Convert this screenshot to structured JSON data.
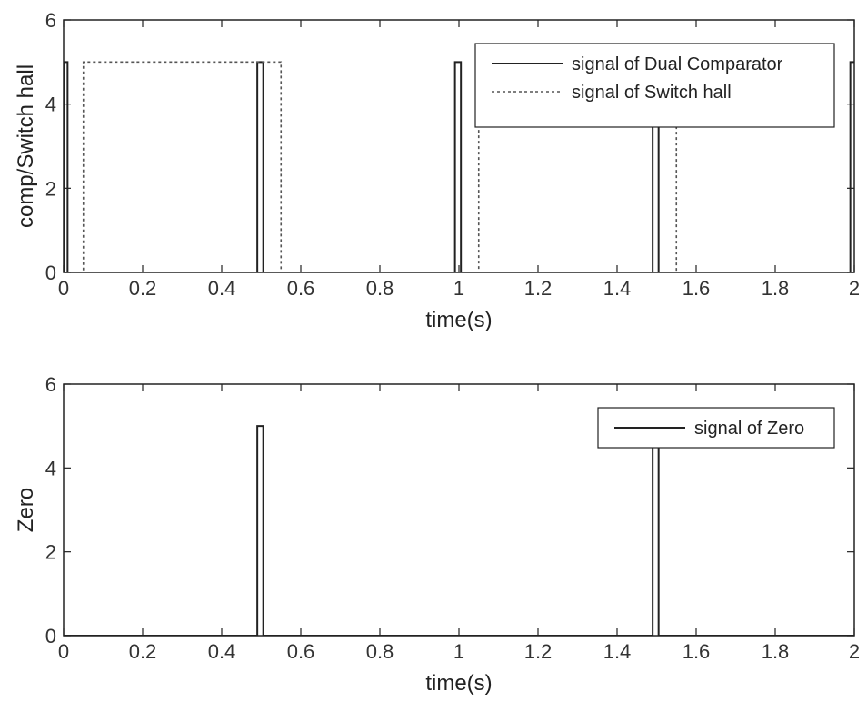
{
  "chart_data": [
    {
      "type": "line",
      "xlabel": "time(s)",
      "ylabel": "comp/Switch hall",
      "xlim": [
        0,
        2
      ],
      "ylim": [
        0,
        6
      ],
      "x_ticks": [
        "0",
        "0.2",
        "0.4",
        "0.6",
        "0.8",
        "1",
        "1.2",
        "1.4",
        "1.6",
        "1.8",
        "2"
      ],
      "y_ticks": [
        "0",
        "2",
        "4",
        "6"
      ],
      "grid": false,
      "legend_position": "top-right",
      "series": [
        {
          "name": "signal of Dual Comparator",
          "style": "solid",
          "color": "#222222",
          "x": [
            0,
            0,
            0.01,
            0.01,
            0.49,
            0.49,
            0.505,
            0.505,
            0.99,
            0.99,
            1.005,
            1.005,
            1.49,
            1.49,
            1.505,
            1.505,
            1.99,
            1.99,
            2
          ],
          "y": [
            0,
            5,
            5,
            0,
            0,
            5,
            5,
            0,
            0,
            5,
            5,
            0,
            0,
            5,
            5,
            0,
            0,
            5,
            5
          ]
        },
        {
          "name": "signal of Switch hall",
          "style": "dotted",
          "color": "#555555",
          "x": [
            0,
            0.05,
            0.05,
            0.55,
            0.55,
            1.05,
            1.05,
            1.55,
            1.55,
            2
          ],
          "y": [
            0,
            0,
            5,
            5,
            0,
            0,
            5,
            5,
            0,
            0
          ]
        }
      ]
    },
    {
      "type": "line",
      "xlabel": "time(s)",
      "ylabel": "Zero",
      "xlim": [
        0,
        2
      ],
      "ylim": [
        0,
        6
      ],
      "x_ticks": [
        "0",
        "0.2",
        "0.4",
        "0.6",
        "0.8",
        "1",
        "1.2",
        "1.4",
        "1.6",
        "1.8",
        "2"
      ],
      "y_ticks": [
        "0",
        "2",
        "4",
        "6"
      ],
      "grid": false,
      "legend_position": "top-right",
      "series": [
        {
          "name": "signal of Zero",
          "style": "solid",
          "color": "#222222",
          "x": [
            0,
            0.49,
            0.49,
            0.505,
            0.505,
            1.49,
            1.49,
            1.505,
            1.505,
            2
          ],
          "y": [
            0,
            0,
            5,
            5,
            0,
            0,
            5,
            5,
            0,
            0
          ]
        }
      ]
    }
  ]
}
